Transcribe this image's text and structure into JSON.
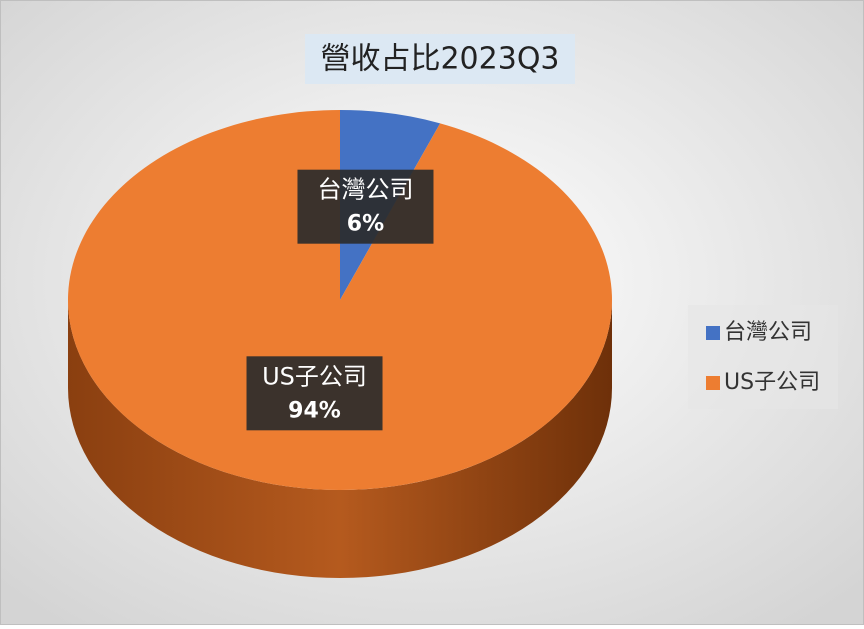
{
  "chart_data": {
    "type": "pie",
    "title": "營收占比2023Q3",
    "categories": [
      "台灣公司",
      "US子公司"
    ],
    "values": [
      6,
      94
    ],
    "value_labels": [
      "6%",
      "94%"
    ],
    "colors": [
      "#4472c4",
      "#ed7d31"
    ],
    "legend": "right"
  }
}
